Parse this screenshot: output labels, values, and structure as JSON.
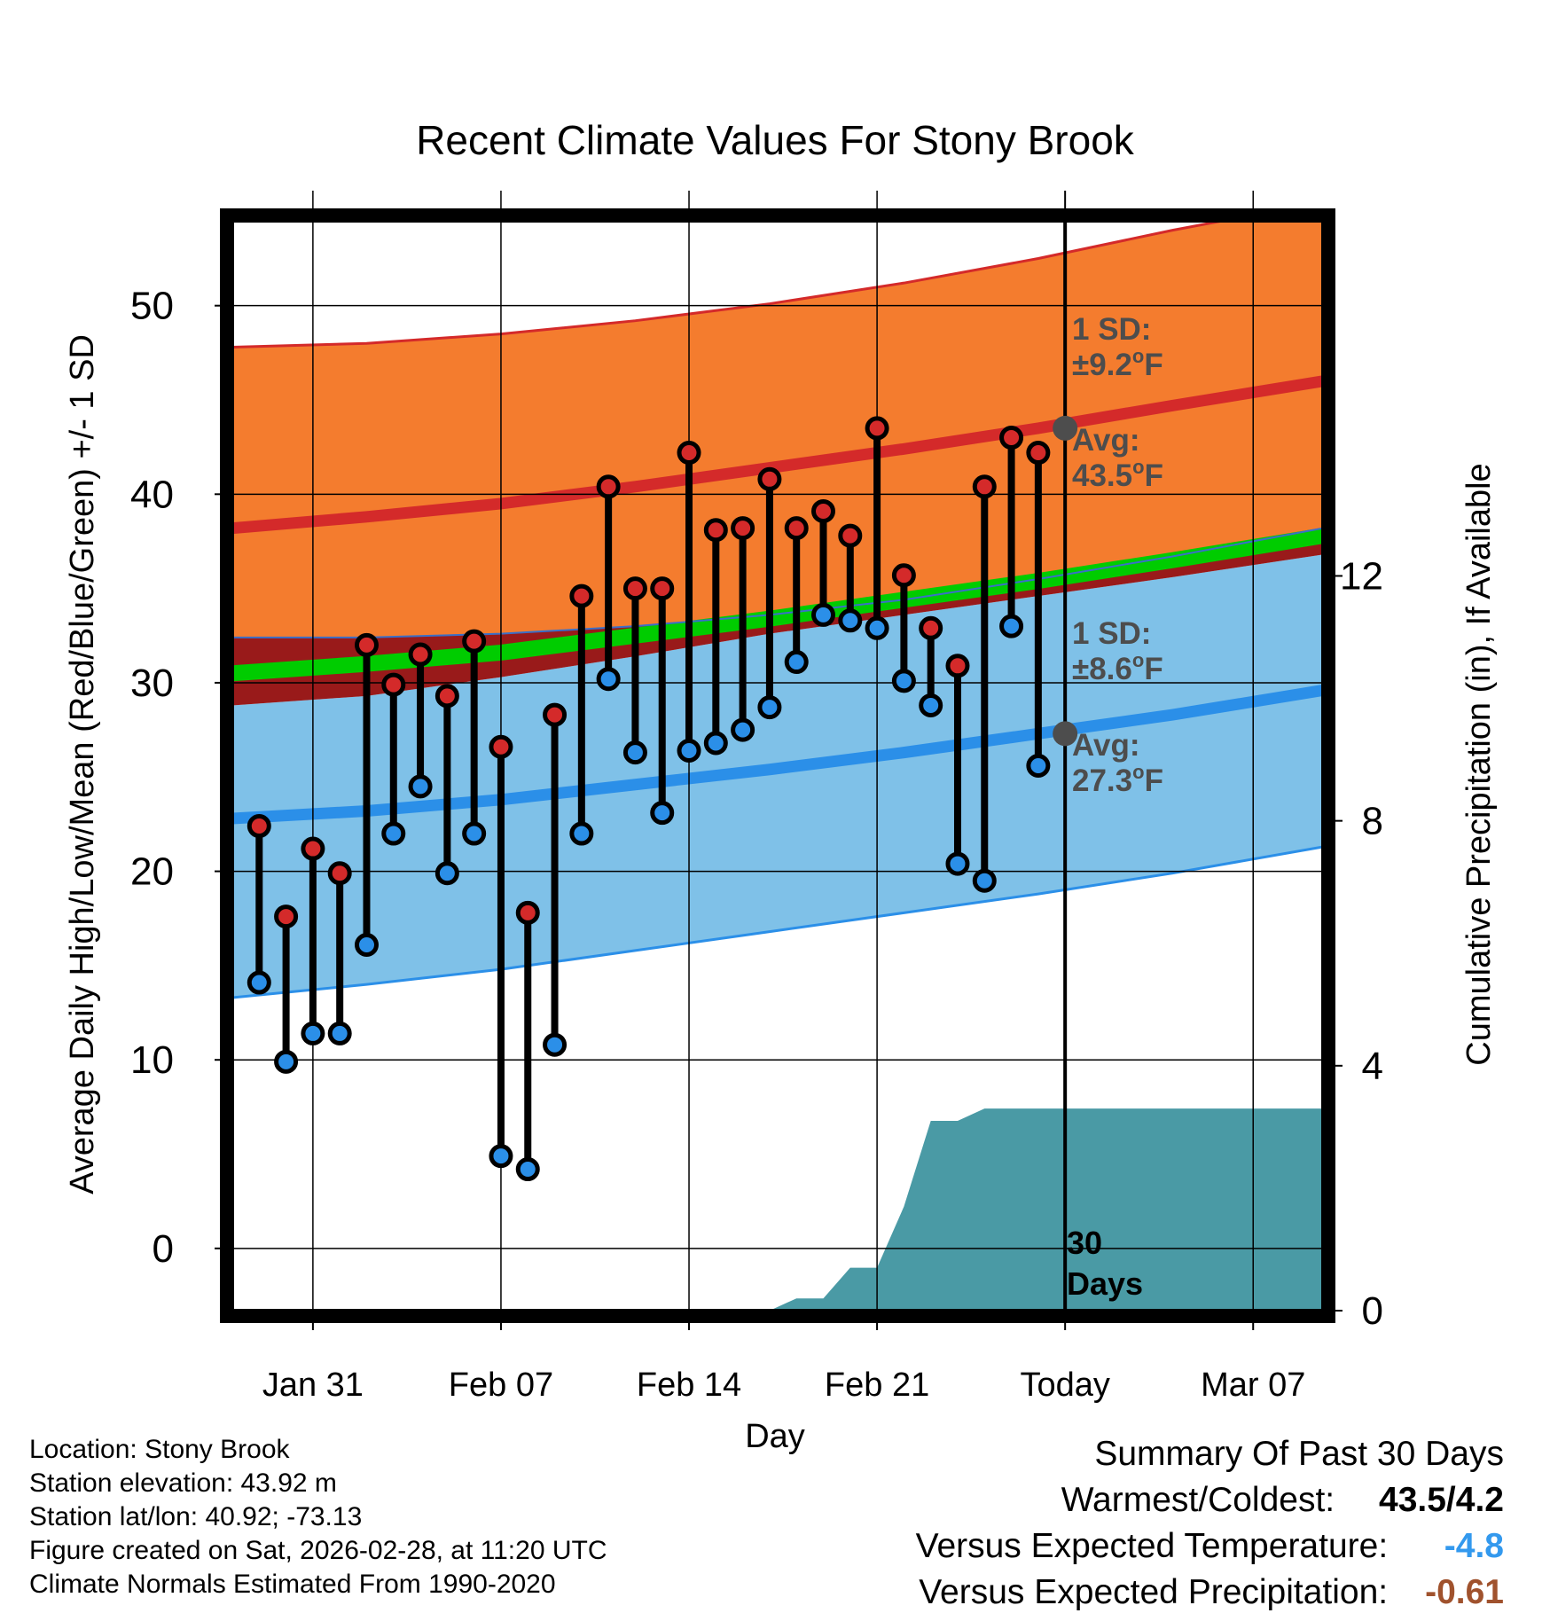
{
  "chart_data": {
    "type": "line",
    "title": "Recent Climate Values For Stony Brook",
    "xlabel": "Day",
    "ylabel": "Average Daily High/Low/Mean (Red/Blue/Green) +/- 1 SD",
    "y2label": "Cumulative Precipitation (in), If Available",
    "x_tick_labels": [
      "Jan 31",
      "Feb 07",
      "Feb 14",
      "Feb 21",
      "Today",
      "Mar 07"
    ],
    "x_tick_days": [
      3,
      10,
      17,
      24,
      31,
      38
    ],
    "x_range_days": [
      0,
      40.6
    ],
    "ylim": [
      -3.3,
      54.5
    ],
    "y_ticks": [
      0,
      10,
      20,
      30,
      40,
      50
    ],
    "y2lim": [
      0,
      17.8
    ],
    "y2_ticks": [
      0,
      4,
      8,
      12
    ],
    "today_day": 31,
    "colors": {
      "high_band": "#f47c2e",
      "high_line": "#d42a2a",
      "low_band": "#7fc1e8",
      "low_line": "#2b8fe8",
      "mean_line": "#00cc00",
      "mean_band": "#991a1a",
      "precip": "#4a9aa5",
      "axis": "#000000",
      "annotation": "#4d4d4d",
      "high_marker": "#d42a2a",
      "low_marker": "#2b8fe8",
      "coldest_value": "#3399ee",
      "precip_value": "#a0522d"
    },
    "normals": {
      "days": [
        0,
        5,
        10,
        15,
        20,
        25,
        30,
        35,
        40.6
      ],
      "high_avg": [
        38.2,
        38.8,
        39.5,
        40.4,
        41.4,
        42.4,
        43.5,
        44.7,
        46.0
      ],
      "high_upper": [
        47.8,
        48.0,
        48.5,
        49.2,
        50.1,
        51.2,
        52.5,
        54.0,
        55.5
      ],
      "low_avg": [
        22.8,
        23.2,
        23.8,
        24.6,
        25.4,
        26.3,
        27.3,
        28.3,
        29.6
      ],
      "low_lower": [
        13.3,
        14.0,
        14.8,
        15.8,
        16.8,
        17.8,
        18.8,
        19.9,
        21.3
      ],
      "mean_avg": [
        30.5,
        31.0,
        31.6,
        32.5,
        33.4,
        34.4,
        35.4,
        36.5,
        37.8
      ],
      "high_lower": [
        32.4,
        32.4,
        32.6,
        33.0,
        33.6,
        34.4,
        35.5,
        36.7,
        38.2
      ],
      "low_upper": [
        28.8,
        29.3,
        30.3,
        31.4,
        32.6,
        33.6,
        34.6,
        35.6,
        36.8
      ]
    },
    "series": [
      {
        "name": "Daily High",
        "days": [
          1,
          2,
          3,
          4,
          5,
          6,
          7,
          8,
          9,
          10,
          11,
          12,
          13,
          14,
          15,
          16,
          17,
          18,
          19,
          20,
          21,
          22,
          23,
          24,
          25,
          26,
          27,
          28,
          29,
          30
        ],
        "values": [
          22.4,
          17.6,
          21.2,
          19.9,
          32.0,
          29.9,
          31.5,
          29.3,
          32.2,
          26.6,
          17.8,
          28.3,
          34.6,
          40.4,
          35.0,
          35.0,
          42.2,
          38.1,
          38.2,
          40.8,
          38.2,
          39.1,
          37.8,
          43.5,
          35.7,
          32.9,
          30.9,
          40.4,
          43.0,
          42.2
        ]
      },
      {
        "name": "Daily Low",
        "days": [
          1,
          2,
          3,
          4,
          5,
          6,
          7,
          8,
          9,
          10,
          11,
          12,
          13,
          14,
          15,
          16,
          17,
          18,
          19,
          20,
          21,
          22,
          23,
          24,
          25,
          26,
          27,
          28,
          29,
          30
        ],
        "values": [
          14.1,
          9.9,
          11.4,
          11.4,
          16.1,
          22.0,
          24.5,
          19.9,
          22.0,
          4.9,
          4.2,
          10.8,
          22.0,
          30.2,
          26.3,
          23.1,
          26.4,
          26.8,
          27.5,
          28.7,
          31.1,
          33.6,
          33.3,
          32.9,
          30.1,
          28.8,
          20.4,
          19.5,
          33.0,
          25.6
        ]
      },
      {
        "name": "Cumulative Precipitation",
        "unit": "in",
        "days": [
          0,
          20,
          21,
          22,
          23,
          24,
          25,
          26,
          27,
          28,
          29,
          30,
          31,
          40.6
        ],
        "values": [
          0,
          0,
          0.2,
          0.2,
          0.7,
          0.7,
          1.7,
          3.1,
          3.1,
          3.3,
          3.3,
          3.3,
          3.3,
          3.3
        ]
      }
    ],
    "annotations": {
      "high_sd_label": "1 SD:",
      "high_sd_value": "±9.2",
      "high_avg_label": "Avg:",
      "high_avg_value": "43.5",
      "low_sd_label": "1 SD:",
      "low_sd_value": "±8.6",
      "low_avg_label": "Avg:",
      "low_avg_value": "27.3",
      "degree_unit": "o",
      "fahrenheit": "F",
      "period_number": "30",
      "period_unit": "Days"
    }
  },
  "info": {
    "location": "Location: Stony Brook",
    "elevation": "Station elevation: 43.92 m",
    "latlon": "Station lat/lon: 40.92; -73.13",
    "created": "Figure created on Sat, 2026-02-28, at 11:20 UTC",
    "normals": "Climate Normals Estimated From 1990-2020"
  },
  "summary": {
    "title": "Summary Of Past 30 Days",
    "warm_cold_label": "Warmest/Coldest:",
    "warm_cold_value": "43.5/4.2",
    "temp_label": "Versus Expected Temperature:",
    "temp_value": "-4.8",
    "precip_label": "Versus Expected Precipitation:",
    "precip_value": "-0.61"
  }
}
